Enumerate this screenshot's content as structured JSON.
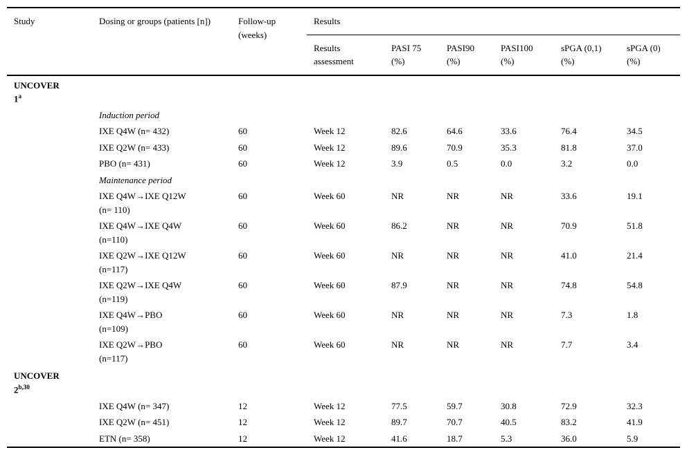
{
  "page": {
    "background_color": "#ffffff",
    "text_color": "#000000"
  },
  "table": {
    "headers": {
      "study": "Study",
      "dosing": "Dosing or groups (patients [n])",
      "followup": "Follow-up (weeks)",
      "results_group": "Results",
      "sub": [
        {
          "line1": "Results",
          "line2": "assessment"
        },
        {
          "line1": "PASI 75",
          "line2": "(%)"
        },
        {
          "line1": "PASI90",
          "line2": "(%)"
        },
        {
          "line1": "PASI100",
          "line2": "(%)"
        },
        {
          "line1": "sPGA (0,1)",
          "line2": "(%)"
        },
        {
          "line1": "sPGA (0)",
          "line2": "(%)"
        }
      ]
    },
    "rows": [
      {
        "type": "section",
        "study_line1": "UNCOVER",
        "study_num": "1",
        "sup": "a"
      },
      {
        "type": "period",
        "dosing": "Induction period"
      },
      {
        "type": "data",
        "dosing": "IXE Q4W (n= 432)",
        "followup": "60",
        "assessment": "Week 12",
        "pasi75": "82.6",
        "pasi90": "64.6",
        "pasi100": "33.6",
        "spga01": "76.4",
        "spga0": "34.5"
      },
      {
        "type": "data",
        "dosing": "IXE Q2W (n= 433)",
        "followup": "60",
        "assessment": "Week 12",
        "pasi75": "89.6",
        "pasi90": "70.9",
        "pasi100": "35.3",
        "spga01": "81.8",
        "spga0": "37.0"
      },
      {
        "type": "data",
        "dosing": "PBO (n= 431)",
        "followup": "60",
        "assessment": "Week 12",
        "pasi75": "3.9",
        "pasi90": "0.5",
        "pasi100": "0.0",
        "spga01": "3.2",
        "spga0": "0.0"
      },
      {
        "type": "period",
        "dosing": "Maintenance period"
      },
      {
        "type": "data",
        "dosing": "IXE Q4W→IXE Q12W",
        "dosing2": "(n= 110)",
        "followup": "60",
        "assessment": "Week 60",
        "pasi75": "NR",
        "pasi90": "NR",
        "pasi100": "NR",
        "spga01": "33.6",
        "spga0": "19.1"
      },
      {
        "type": "data",
        "dosing": "IXE Q4W→IXE Q4W",
        "dosing2": "(n=110)",
        "followup": "60",
        "assessment": "Week 60",
        "pasi75": "86.2",
        "pasi90": "NR",
        "pasi100": "NR",
        "spga01": "70.9",
        "spga0": "51.8"
      },
      {
        "type": "data",
        "dosing": "IXE Q2W→IXE Q12W",
        "dosing2": "(n=117)",
        "followup": "60",
        "assessment": "Week 60",
        "pasi75": "NR",
        "pasi90": "NR",
        "pasi100": "NR",
        "spga01": "41.0",
        "spga0": "21.4"
      },
      {
        "type": "data",
        "dosing": "IXE Q2W→IXE Q4W",
        "dosing2": "(n=119)",
        "followup": "60",
        "assessment": "Week 60",
        "pasi75": "87.9",
        "pasi90": "NR",
        "pasi100": "NR",
        "spga01": "74.8",
        "spga0": "54.8"
      },
      {
        "type": "data",
        "dosing": "IXE Q4W→PBO",
        "dosing2": "(n=109)",
        "followup": "60",
        "assessment": "Week 60",
        "pasi75": "NR",
        "pasi90": "NR",
        "pasi100": "NR",
        "spga01": "7.3",
        "spga0": "1.8"
      },
      {
        "type": "data",
        "dosing": "IXE Q2W→PBO",
        "dosing2": "(n=117)",
        "followup": "60",
        "assessment": "Week 60",
        "pasi75": "NR",
        "pasi90": "NR",
        "pasi100": "NR",
        "spga01": "7.7",
        "spga0": "3.4"
      },
      {
        "type": "section",
        "study_line1": "UNCOVER",
        "study_num": "2",
        "sup": "b,30"
      },
      {
        "type": "data",
        "dosing": "IXE Q4W (n= 347)",
        "followup": "12",
        "assessment": "Week 12",
        "pasi75": "77.5",
        "pasi90": "59.7",
        "pasi100": "30.8",
        "spga01": "72.9",
        "spga0": "32.3"
      },
      {
        "type": "data",
        "dosing": "IXE Q2W (n= 451)",
        "followup": "12",
        "assessment": "Week 12",
        "pasi75": "89.7",
        "pasi90": "70.7",
        "pasi100": "40.5",
        "spga01": "83.2",
        "spga0": "41.9"
      },
      {
        "type": "data",
        "dosing": "ETN (n= 358)",
        "followup": "12",
        "assessment": "Week 12",
        "pasi75": "41.6",
        "pasi90": "18.7",
        "pasi100": "5.3",
        "spga01": "36.0",
        "spga0": "5.9"
      }
    ]
  }
}
